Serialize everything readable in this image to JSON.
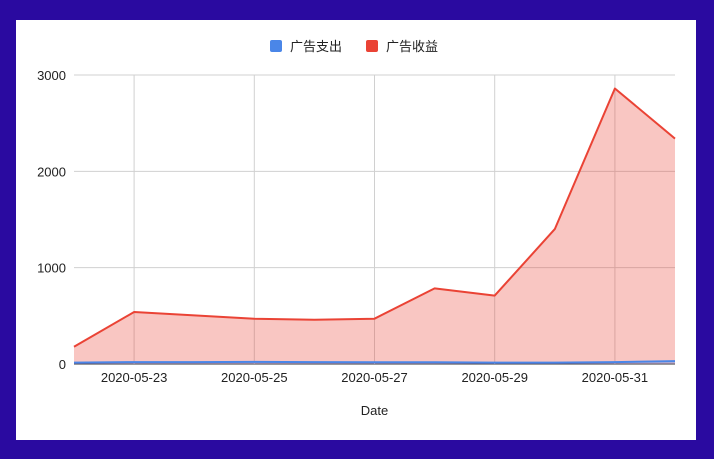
{
  "chart_data": {
    "type": "area",
    "xlabel": "Date",
    "ylabel": "",
    "ylim": [
      0,
      3000
    ],
    "yticks": [
      "0",
      "1000",
      "2000",
      "3000"
    ],
    "x": [
      "2020-05-22",
      "2020-05-23",
      "2020-05-24",
      "2020-05-25",
      "2020-05-26",
      "2020-05-27",
      "2020-05-28",
      "2020-05-29",
      "2020-05-30",
      "2020-05-31",
      "2020-06-01"
    ],
    "xtick_labels": [
      "2020-05-23",
      "2020-05-25",
      "2020-05-27",
      "2020-05-29",
      "2020-05-31"
    ],
    "legend_position": "top-center",
    "grid": true,
    "series": [
      {
        "name": "广告支出",
        "color": "#4a86e8",
        "values": [
          15,
          20,
          20,
          22,
          20,
          18,
          18,
          15,
          15,
          20,
          30
        ]
      },
      {
        "name": "广告收益",
        "color": "#ea4335",
        "values": [
          180,
          540,
          505,
          470,
          460,
          470,
          785,
          710,
          1400,
          2860,
          2340
        ]
      }
    ]
  }
}
